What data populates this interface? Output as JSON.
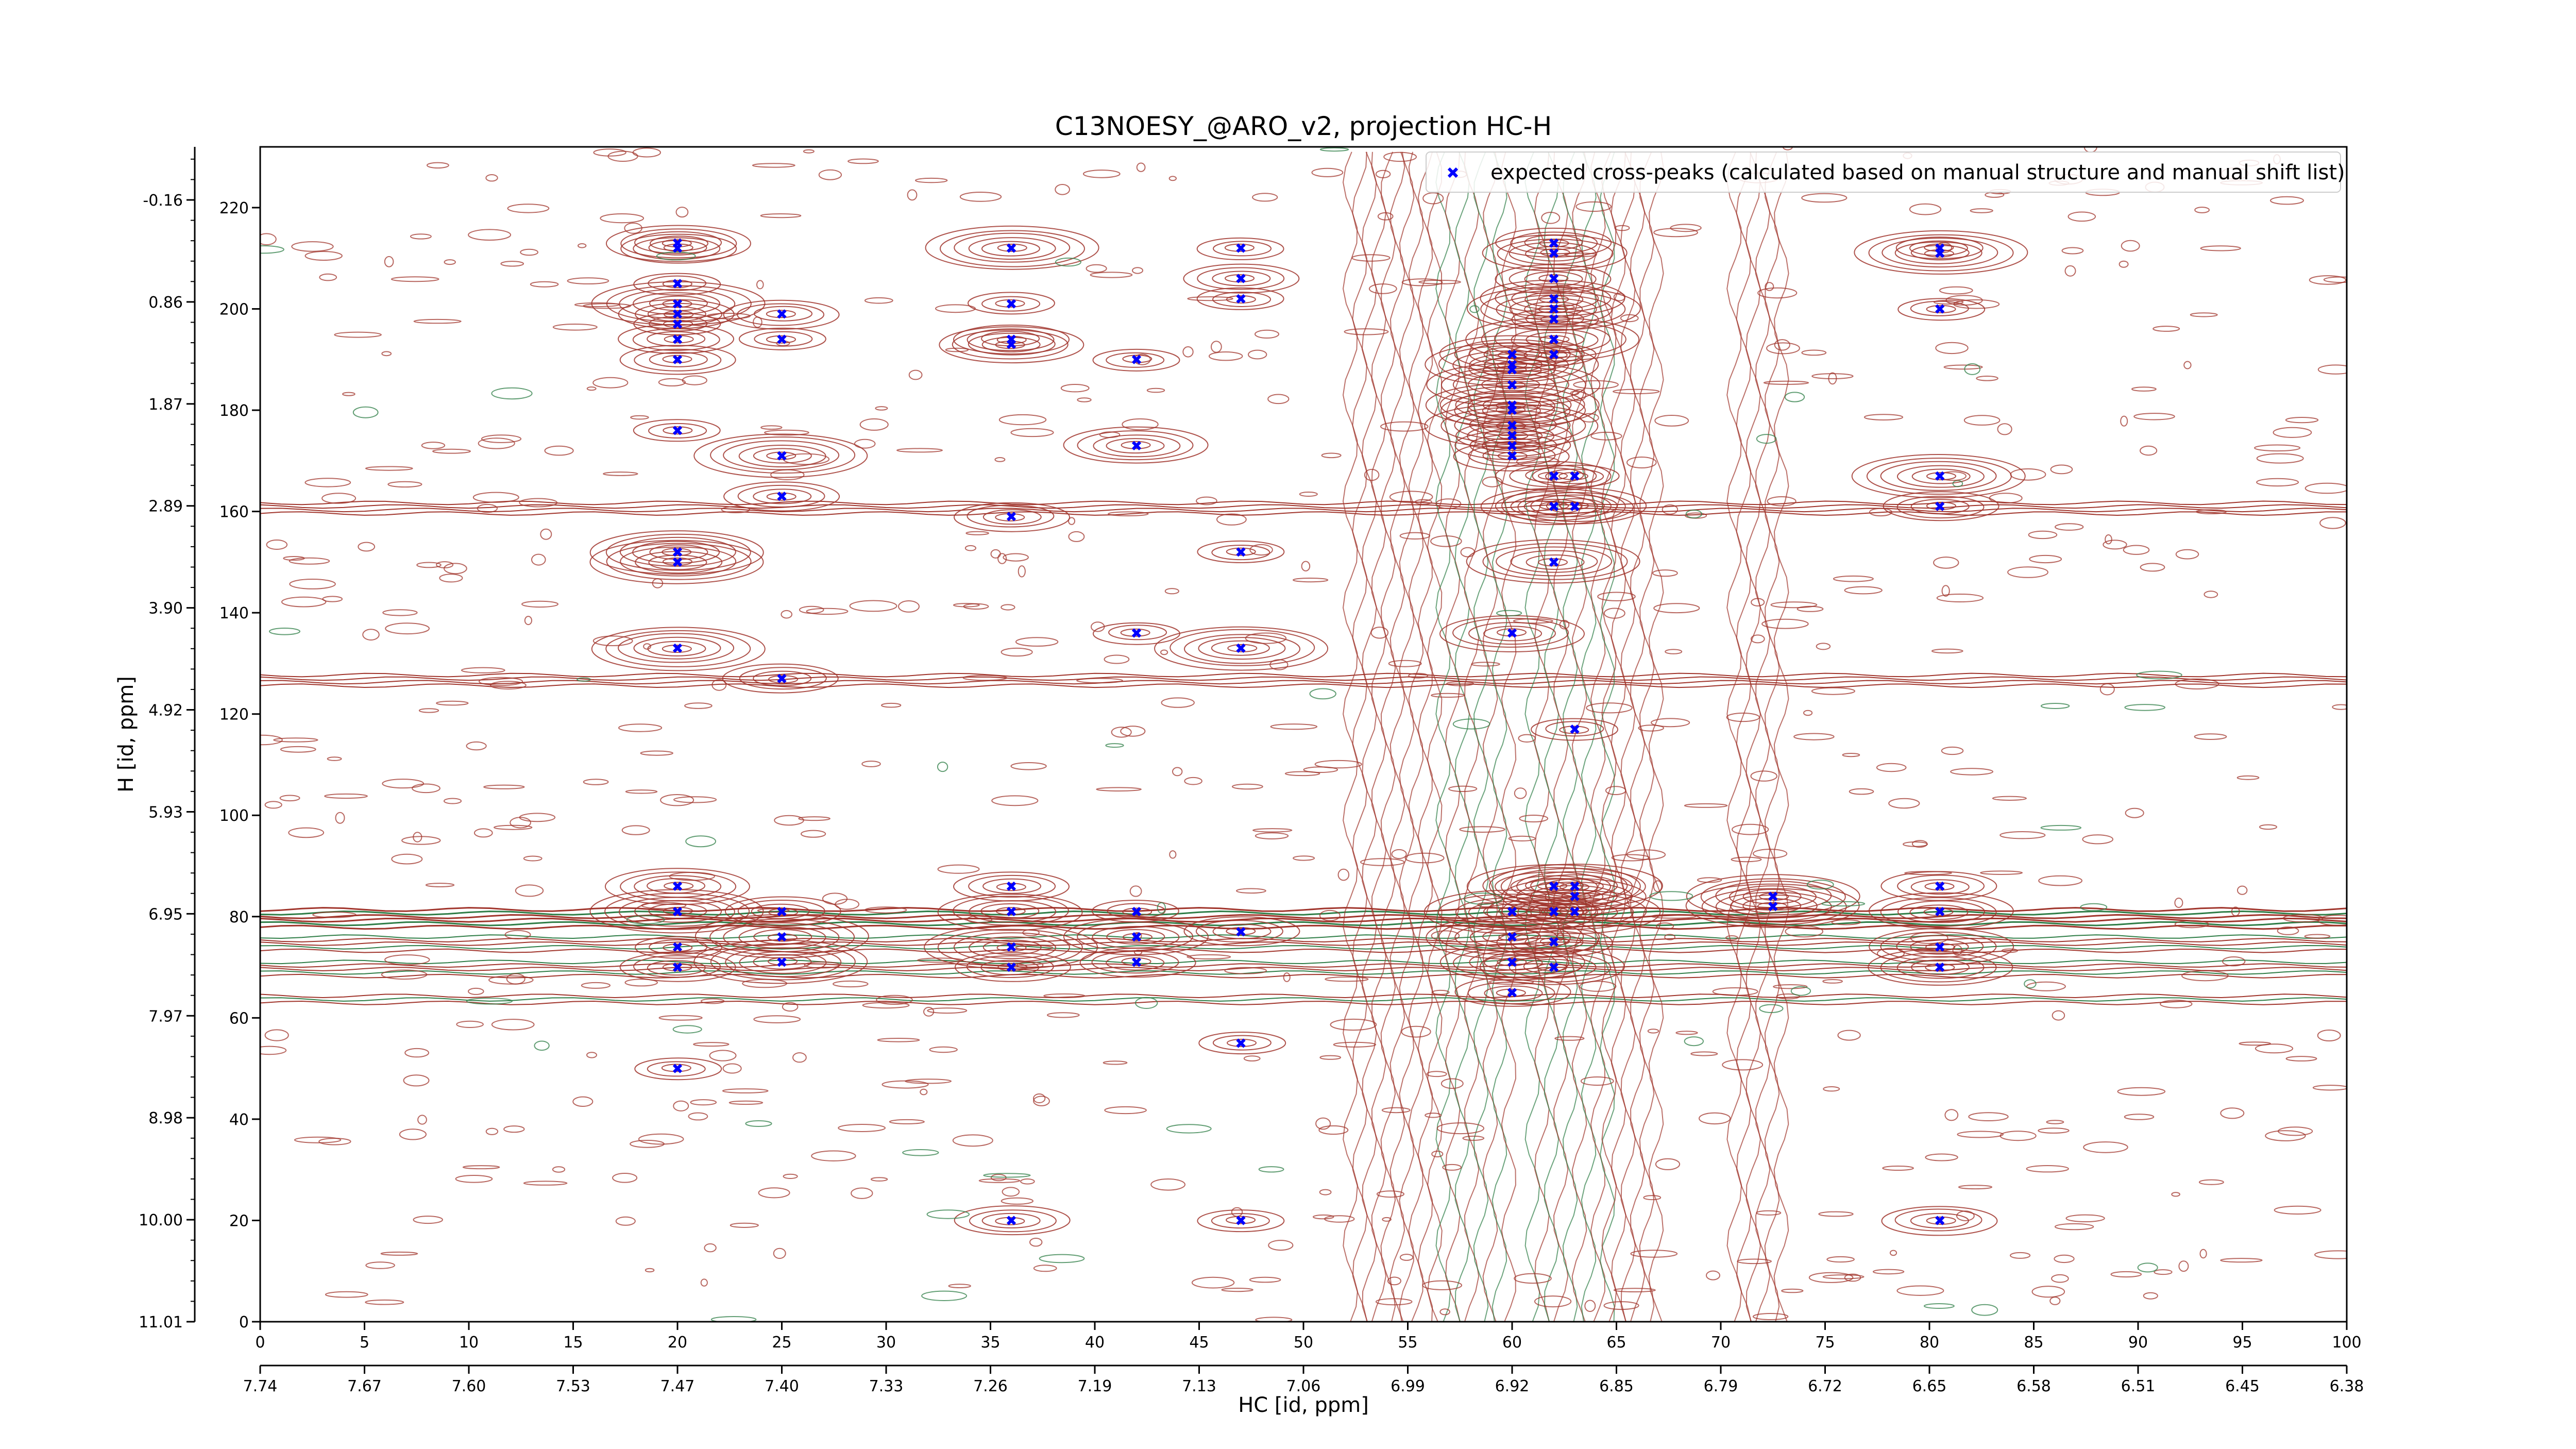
{
  "chart_data": {
    "type": "scatter",
    "title": "C13NOESY_@ARO_v2, projection HC-H",
    "xlabel": "HC [id, ppm]",
    "ylabel": "H [id, ppm]",
    "xlim": [
      0,
      100
    ],
    "ylim": [
      0,
      232
    ],
    "legend_position": "top-right",
    "x_index_ticks": [
      "0",
      "5",
      "10",
      "15",
      "20",
      "25",
      "30",
      "35",
      "40",
      "45",
      "50",
      "55",
      "60",
      "65",
      "70",
      "75",
      "80",
      "85",
      "90",
      "95",
      "100"
    ],
    "x_ppm_ticks": [
      "7.74",
      "7.67",
      "7.60",
      "7.53",
      "7.47",
      "7.40",
      "7.33",
      "7.26",
      "7.19",
      "7.13",
      "7.06",
      "6.99",
      "6.92",
      "6.85",
      "6.79",
      "6.72",
      "6.65",
      "6.58",
      "6.51",
      "6.45",
      "6.38"
    ],
    "y_index_ticks": [
      "0",
      "20",
      "40",
      "60",
      "80",
      "100",
      "120",
      "140",
      "160",
      "180",
      "200",
      "220"
    ],
    "y_ppm_ticks": [
      "11.01",
      "10.00",
      "8.98",
      "7.97",
      "6.95",
      "5.93",
      "4.92",
      "3.90",
      "2.89",
      "1.87",
      "0.86",
      "-0.16"
    ],
    "colors": {
      "positive_contour": "#a0342b",
      "negative_contour": "#2e7d46",
      "peak": "#0000ff"
    },
    "series": [
      {
        "name": "expected cross-peaks (calculated based on manual structure and manual shift list)",
        "marker": "x",
        "points": [
          [
            20,
            213
          ],
          [
            20,
            212
          ],
          [
            20,
            205
          ],
          [
            20,
            201
          ],
          [
            20,
            199
          ],
          [
            20,
            197
          ],
          [
            20,
            194
          ],
          [
            20,
            190
          ],
          [
            20,
            176
          ],
          [
            20,
            152
          ],
          [
            20,
            150
          ],
          [
            20,
            133
          ],
          [
            20,
            86
          ],
          [
            20,
            81
          ],
          [
            20,
            74
          ],
          [
            20,
            70
          ],
          [
            20,
            50
          ],
          [
            25,
            199
          ],
          [
            25,
            194
          ],
          [
            25,
            171
          ],
          [
            25,
            163
          ],
          [
            25,
            127
          ],
          [
            25,
            81
          ],
          [
            25,
            76
          ],
          [
            25,
            71
          ],
          [
            36,
            212
          ],
          [
            36,
            201
          ],
          [
            36,
            194
          ],
          [
            36,
            193
          ],
          [
            36,
            159
          ],
          [
            36,
            86
          ],
          [
            36,
            81
          ],
          [
            36,
            74
          ],
          [
            36,
            70
          ],
          [
            36,
            20
          ],
          [
            42,
            190
          ],
          [
            42,
            173
          ],
          [
            42,
            136
          ],
          [
            42,
            81
          ],
          [
            42,
            76
          ],
          [
            42,
            71
          ],
          [
            47,
            212
          ],
          [
            47,
            206
          ],
          [
            47,
            202
          ],
          [
            47,
            152
          ],
          [
            47,
            133
          ],
          [
            47,
            77
          ],
          [
            47,
            55
          ],
          [
            47,
            20
          ],
          [
            60,
            191
          ],
          [
            60,
            189
          ],
          [
            60,
            188
          ],
          [
            60,
            185
          ],
          [
            60,
            181
          ],
          [
            60,
            180
          ],
          [
            60,
            177
          ],
          [
            60,
            175
          ],
          [
            60,
            173
          ],
          [
            60,
            171
          ],
          [
            60,
            136
          ],
          [
            60,
            81
          ],
          [
            60,
            76
          ],
          [
            60,
            71
          ],
          [
            60,
            65
          ],
          [
            62,
            213
          ],
          [
            62,
            211
          ],
          [
            62,
            206
          ],
          [
            62,
            202
          ],
          [
            62,
            200
          ],
          [
            62,
            198
          ],
          [
            62,
            194
          ],
          [
            62,
            191
          ],
          [
            62,
            167
          ],
          [
            62,
            161
          ],
          [
            62,
            150
          ],
          [
            62,
            86
          ],
          [
            62,
            81
          ],
          [
            62,
            75
          ],
          [
            62,
            70
          ],
          [
            63,
            167
          ],
          [
            63,
            161
          ],
          [
            63,
            117
          ],
          [
            63,
            86
          ],
          [
            63,
            84
          ],
          [
            63,
            81
          ],
          [
            72.5,
            84
          ],
          [
            72.5,
            82
          ],
          [
            80.5,
            212
          ],
          [
            80.5,
            211
          ],
          [
            80.5,
            200
          ],
          [
            80.5,
            167
          ],
          [
            80.5,
            161
          ],
          [
            80.5,
            86
          ],
          [
            80.5,
            81
          ],
          [
            80.5,
            74
          ],
          [
            80.5,
            70
          ],
          [
            80.5,
            20
          ]
        ]
      }
    ]
  }
}
